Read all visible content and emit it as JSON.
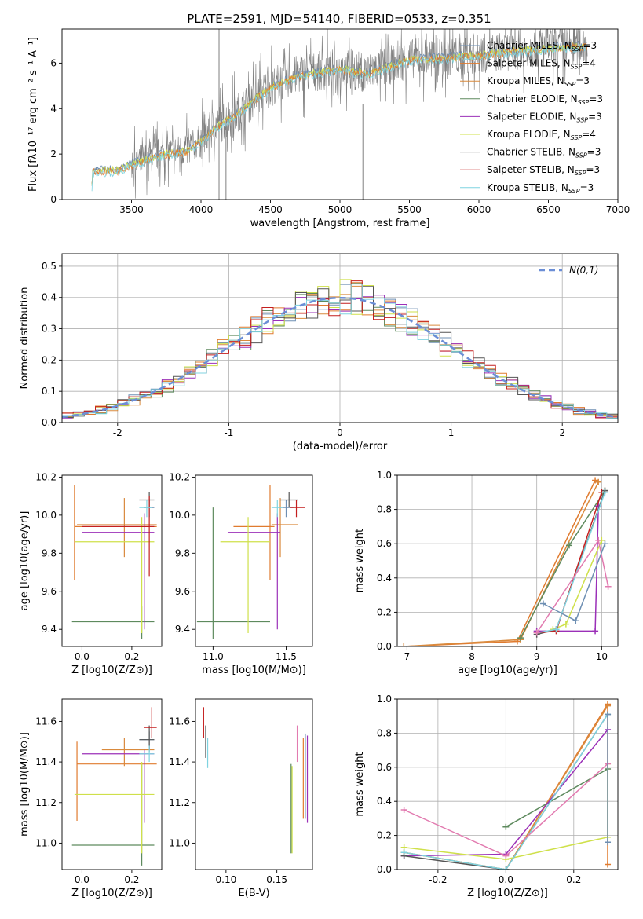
{
  "figure": {
    "title": "PLATE=2591, MJD=54140, FIBERID=0533, z=0.351"
  },
  "colors": {
    "Chabrier MILES": "#6e8fb3",
    "Salpeter MILES": "#e07b2f",
    "Kroupa MILES": "#d98a3d",
    "Chabrier ELODIE": "#5e8a5e",
    "Salpeter ELODIE": "#9b30b8",
    "Kroupa ELODIE": "#cfe04a",
    "Chabrier STELIB": "#555555",
    "Salpeter STELIB": "#c41f1f",
    "Kroupa STELIB": "#7fd3e0",
    "spectrum": "#808080",
    "normal": "#6b8ed6",
    "pink": "#e27bb0",
    "orange": "#e07b2f"
  },
  "chart_data": [
    {
      "id": "spectrum",
      "type": "line",
      "xlabel": "wavelength [Angstrom, rest frame]",
      "ylabel": "Flux [fλ10⁻¹⁷ erg cm⁻² s⁻¹ A⁻¹]",
      "xlim": [
        3000,
        7000
      ],
      "ylim": [
        0,
        7.5
      ],
      "xticks": [
        3500,
        4000,
        4500,
        5000,
        5500,
        6000,
        6500,
        7000
      ],
      "yticks": [
        0,
        2,
        4,
        6
      ],
      "legend_position": "upper right",
      "legend": [
        {
          "name": "Chabrier MILES",
          "sub": "SSP",
          "n": 3
        },
        {
          "name": "Salpeter MILES",
          "sub": "SSP",
          "n": 4
        },
        {
          "name": "Kroupa MILES",
          "sub": "SSP",
          "n": 3
        },
        {
          "name": "Chabrier ELODIE",
          "sub": "SSP",
          "n": 3
        },
        {
          "name": "Salpeter ELODIE",
          "sub": "SSP",
          "n": 3
        },
        {
          "name": "Kroupa ELODIE",
          "sub": "SSP",
          "n": 4
        },
        {
          "name": "Chabrier STELIB",
          "sub": "SSP",
          "n": 3
        },
        {
          "name": "Salpeter STELIB",
          "sub": "SSP",
          "n": 3
        },
        {
          "name": "Kroupa STELIB",
          "sub": "SSP",
          "n": 3
        }
      ],
      "continuum": [
        [
          3210,
          0
        ],
        [
          3220,
          1.3
        ],
        [
          3400,
          1.35
        ],
        [
          3500,
          1.6
        ],
        [
          3700,
          2.0
        ],
        [
          3900,
          2.2
        ],
        [
          4000,
          2.6
        ],
        [
          4100,
          3.2
        ],
        [
          4300,
          4.0
        ],
        [
          4500,
          5.0
        ],
        [
          4700,
          5.5
        ],
        [
          5000,
          5.8
        ],
        [
          5200,
          5.6
        ],
        [
          5500,
          6.2
        ],
        [
          6000,
          6.4
        ],
        [
          6300,
          6.6
        ],
        [
          6500,
          6.7
        ],
        [
          6700,
          6.8
        ],
        [
          6780,
          6.8
        ]
      ]
    },
    {
      "id": "residual-histogram",
      "type": "line",
      "xlabel": "(data-model)/error",
      "ylabel": "Normed distribution",
      "xlim": [
        -2.5,
        2.5
      ],
      "ylim": [
        0,
        0.54
      ],
      "xticks": [
        -2,
        -1,
        0,
        1,
        2
      ],
      "yticks": [
        0.0,
        0.1,
        0.2,
        0.3,
        0.4,
        0.5
      ],
      "legend": "N(0,1)",
      "grid": true
    },
    {
      "id": "age-vs-Z",
      "type": "scatter",
      "xlabel": "Z [log10(Z/Z⊙)]",
      "ylabel": "age  [log10(age/yr)]",
      "xlim": [
        -0.08,
        0.32
      ],
      "ylim": [
        9.31,
        10.21
      ],
      "xticks": [
        0.0,
        0.2
      ],
      "yticks": [
        9.4,
        9.6,
        9.8,
        10.0,
        10.2
      ],
      "points": [
        {
          "s": "Chabrier MILES",
          "x": 0.27,
          "y": 10.04,
          "ex": [
            0.25,
            0.29
          ],
          "ey": [
            9.99,
            10.08
          ]
        },
        {
          "s": "Salpeter MILES",
          "x": -0.03,
          "y": 9.94,
          "ex": [
            -0.03,
            0.3
          ],
          "ey": [
            9.66,
            10.16
          ]
        },
        {
          "s": "Kroupa MILES",
          "x": 0.17,
          "y": 9.95,
          "ex": [
            -0.02,
            0.3
          ],
          "ey": [
            9.78,
            10.09
          ]
        },
        {
          "s": "Chabrier ELODIE",
          "x": 0.24,
          "y": 9.44,
          "ex": [
            -0.04,
            0.29
          ],
          "ey": [
            9.35,
            9.52
          ]
        },
        {
          "s": "Salpeter ELODIE",
          "x": 0.25,
          "y": 9.91,
          "ex": [
            0.0,
            0.29
          ],
          "ey": [
            9.4,
            10.01
          ]
        },
        {
          "s": "Kroupa ELODIE",
          "x": 0.24,
          "y": 9.86,
          "ex": [
            -0.03,
            0.29
          ],
          "ey": [
            9.38,
            9.99
          ]
        },
        {
          "s": "Chabrier STELIB",
          "x": 0.27,
          "y": 10.08,
          "ex": [
            0.23,
            0.29
          ],
          "ey": [
            10.04,
            10.12
          ]
        },
        {
          "s": "Salpeter STELIB",
          "x": 0.27,
          "y": 9.94,
          "ex": [
            0.0,
            0.29
          ],
          "ey": [
            9.68,
            10.1
          ]
        },
        {
          "s": "Kroupa STELIB",
          "x": 0.26,
          "y": 10.04,
          "ex": [
            0.23,
            0.28
          ],
          "ey": [
            9.99,
            10.08
          ]
        }
      ]
    },
    {
      "id": "age-vs-mass",
      "type": "scatter",
      "xlabel": "mass [log10(M/M⊙)]",
      "ylabel": "",
      "xlim": [
        10.88,
        11.68
      ],
      "ylim": [
        9.31,
        10.21
      ],
      "xticks": [
        11.0,
        11.5
      ],
      "yticks": [
        9.4,
        9.6,
        9.8,
        10.0,
        10.2
      ],
      "points": [
        {
          "s": "Chabrier MILES",
          "x": 11.5,
          "y": 10.04,
          "ex": [
            11.45,
            11.55
          ],
          "ey": [
            9.99,
            10.08
          ]
        },
        {
          "s": "Salpeter MILES",
          "x": 11.39,
          "y": 9.94,
          "ex": [
            11.14,
            11.42
          ],
          "ey": [
            9.66,
            10.16
          ]
        },
        {
          "s": "Kroupa MILES",
          "x": 11.46,
          "y": 9.95,
          "ex": [
            11.4,
            11.58
          ],
          "ey": [
            9.78,
            10.09
          ]
        },
        {
          "s": "Chabrier ELODIE",
          "x": 11.0,
          "y": 9.44,
          "ex": [
            10.89,
            11.39
          ],
          "ey": [
            9.35,
            10.04
          ]
        },
        {
          "s": "Salpeter ELODIE",
          "x": 11.44,
          "y": 9.91,
          "ex": [
            11.1,
            11.46
          ],
          "ey": [
            9.4,
            10.01
          ]
        },
        {
          "s": "Kroupa ELODIE",
          "x": 11.24,
          "y": 9.86,
          "ex": [
            11.05,
            11.39
          ],
          "ey": [
            9.38,
            9.99
          ]
        },
        {
          "s": "Chabrier STELIB",
          "x": 11.52,
          "y": 10.08,
          "ex": [
            11.46,
            11.58
          ],
          "ey": [
            10.04,
            10.12
          ]
        },
        {
          "s": "Salpeter STELIB",
          "x": 11.57,
          "y": 10.04,
          "ex": [
            11.53,
            11.63
          ],
          "ey": [
            9.99,
            10.08
          ]
        },
        {
          "s": "Kroupa STELIB",
          "x": 11.44,
          "y": 10.04,
          "ex": [
            11.4,
            11.48
          ],
          "ey": [
            9.99,
            10.08
          ]
        }
      ]
    },
    {
      "id": "mass-weight-vs-age",
      "type": "line",
      "xlabel": "age  [log10(age/yr)]",
      "ylabel": "mass weight",
      "xlim": [
        6.85,
        10.25
      ],
      "ylim": [
        0,
        1.0
      ],
      "xticks": [
        7,
        8,
        9,
        10
      ],
      "yticks": [
        0.0,
        0.2,
        0.4,
        0.6,
        0.8,
        1.0
      ],
      "grid": true,
      "series": [
        {
          "s": "Salpeter MILES",
          "x": [
            6.95,
            8.7,
            9.9
          ],
          "y": [
            0.0,
            0.03,
            0.97
          ]
        },
        {
          "s": "Kroupa MILES",
          "x": [
            6.95,
            8.75,
            9.95
          ],
          "y": [
            0.0,
            0.04,
            0.96
          ]
        },
        {
          "s": "Chabrier ELODIE",
          "x": [
            8.75,
            9.5,
            10.05
          ],
          "y": [
            0.05,
            0.59,
            0.91
          ]
        },
        {
          "s": "Salpeter ELODIE",
          "x": [
            9.0,
            9.9,
            9.95
          ],
          "y": [
            0.09,
            0.09,
            0.82
          ]
        },
        {
          "s": "Kroupa ELODIE",
          "x": [
            9.25,
            9.45,
            10.0
          ],
          "y": [
            0.1,
            0.13,
            0.62
          ]
        },
        {
          "s": "Chabrier STELIB",
          "x": [
            9.0,
            9.3,
            10.05
          ],
          "y": [
            0.07,
            0.1,
            0.91
          ]
        },
        {
          "s": "Salpeter STELIB",
          "x": [
            9.0,
            9.3,
            10.0
          ],
          "y": [
            0.08,
            0.09,
            0.9
          ]
        },
        {
          "s": "Kroupa STELIB",
          "x": [
            9.0,
            9.3,
            10.05
          ],
          "y": [
            0.08,
            0.1,
            0.9
          ]
        },
        {
          "s": "pink",
          "x": [
            9.0,
            9.95,
            10.1
          ],
          "y": [
            0.08,
            0.62,
            0.35
          ]
        },
        {
          "s": "Chabrier MILES",
          "x": [
            9.1,
            9.6,
            10.05
          ],
          "y": [
            0.25,
            0.15,
            0.6
          ]
        }
      ]
    },
    {
      "id": "mass-vs-Z",
      "type": "scatter",
      "xlabel": "Z [log10(Z/Z⊙)]",
      "ylabel": "mass [log10(M/M⊙)]",
      "xlim": [
        -0.08,
        0.32
      ],
      "ylim": [
        10.87,
        11.71
      ],
      "xticks": [
        0.0,
        0.2
      ],
      "yticks": [
        11.0,
        11.2,
        11.4,
        11.6
      ],
      "points": [
        {
          "s": "Chabrier MILES",
          "x": 0.27,
          "y": 11.51,
          "ex": [
            0.23,
            0.29
          ],
          "ey": [
            11.45,
            11.55
          ]
        },
        {
          "s": "Salpeter MILES",
          "x": -0.02,
          "y": 11.39,
          "ex": [
            -0.02,
            0.3
          ],
          "ey": [
            11.11,
            11.5
          ]
        },
        {
          "s": "Kroupa MILES",
          "x": 0.17,
          "y": 11.46,
          "ex": [
            0.08,
            0.29
          ],
          "ey": [
            11.38,
            11.52
          ]
        },
        {
          "s": "Chabrier ELODIE",
          "x": 0.24,
          "y": 10.99,
          "ex": [
            -0.04,
            0.29
          ],
          "ey": [
            10.89,
            11.39
          ]
        },
        {
          "s": "Salpeter ELODIE",
          "x": 0.25,
          "y": 11.44,
          "ex": [
            0.0,
            0.29
          ],
          "ey": [
            11.1,
            11.46
          ]
        },
        {
          "s": "Kroupa ELODIE",
          "x": 0.24,
          "y": 11.24,
          "ex": [
            -0.03,
            0.29
          ],
          "ey": [
            10.95,
            11.4
          ]
        },
        {
          "s": "Chabrier STELIB",
          "x": 0.27,
          "y": 11.51,
          "ex": [
            0.23,
            0.29
          ],
          "ey": [
            11.46,
            11.58
          ]
        },
        {
          "s": "Salpeter STELIB",
          "x": 0.28,
          "y": 11.57,
          "ex": [
            0.25,
            0.3
          ],
          "ey": [
            11.52,
            11.67
          ]
        },
        {
          "s": "Kroupa STELIB",
          "x": 0.27,
          "y": 11.44,
          "ex": [
            0.23,
            0.29
          ],
          "ey": [
            11.4,
            11.48
          ]
        }
      ]
    },
    {
      "id": "mass-vs-EBV",
      "type": "scatter",
      "xlabel": "E(B-V)",
      "ylabel": "",
      "xlim": [
        0.07,
        0.185
      ],
      "ylim": [
        10.87,
        11.71
      ],
      "xticks": [
        0.1,
        0.15
      ],
      "yticks": [
        11.0,
        11.2,
        11.4,
        11.6
      ],
      "points": [
        {
          "s": "Salpeter STELIB",
          "x": 0.078,
          "ey": [
            11.52,
            11.67
          ]
        },
        {
          "s": "Chabrier STELIB",
          "x": 0.08,
          "ey": [
            11.42,
            11.58
          ]
        },
        {
          "s": "Kroupa STELIB",
          "x": 0.082,
          "ey": [
            11.37,
            11.52
          ]
        },
        {
          "s": "Chabrier ELODIE",
          "x": 0.164,
          "ey": [
            10.95,
            11.39
          ]
        },
        {
          "s": "Kroupa ELODIE",
          "x": 0.165,
          "ey": [
            10.95,
            11.38
          ]
        },
        {
          "s": "pink",
          "x": 0.17,
          "ey": [
            11.4,
            11.58
          ]
        },
        {
          "s": "Salpeter MILES",
          "x": 0.176,
          "ey": [
            11.12,
            11.52
          ]
        },
        {
          "s": "Chabrier MILES",
          "x": 0.178,
          "ey": [
            11.12,
            11.54
          ]
        },
        {
          "s": "Salpeter ELODIE",
          "x": 0.18,
          "ey": [
            11.1,
            11.53
          ]
        }
      ]
    },
    {
      "id": "mass-weight-vs-Z",
      "type": "line",
      "xlabel": "Z [log10(Z/Z⊙)]",
      "ylabel": "mass weight",
      "xlim": [
        -0.32,
        0.33
      ],
      "ylim": [
        0,
        1.0
      ],
      "xticks": [
        -0.2,
        0.0,
        0.2
      ],
      "yticks": [
        0.0,
        0.2,
        0.4,
        0.6,
        0.8,
        1.0
      ],
      "grid": true,
      "series": [
        {
          "s": "Salpeter MILES",
          "x": [
            -0.3,
            0.0,
            0.3,
            0.3
          ],
          "y": [
            0.1,
            0.0,
            0.97,
            0.03
          ]
        },
        {
          "s": "Kroupa MILES",
          "x": [
            -0.3,
            0.0,
            0.3
          ],
          "y": [
            0.1,
            0.0,
            0.96
          ]
        },
        {
          "s": "Chabrier ELODIE",
          "x": [
            0.0,
            0.3
          ],
          "y": [
            0.25,
            0.59
          ]
        },
        {
          "s": "Salpeter ELODIE",
          "x": [
            -0.3,
            0.0,
            0.3
          ],
          "y": [
            0.08,
            0.09,
            0.82
          ]
        },
        {
          "s": "Kroupa ELODIE",
          "x": [
            -0.3,
            0.0,
            0.3,
            0.3
          ],
          "y": [
            0.13,
            0.06,
            0.19,
            0.62
          ]
        },
        {
          "s": "Chabrier STELIB",
          "x": [
            -0.3,
            0.0,
            0.3
          ],
          "y": [
            0.08,
            0.0,
            0.91
          ]
        },
        {
          "s": "Kroupa STELIB",
          "x": [
            -0.3,
            0.0,
            0.3
          ],
          "y": [
            0.1,
            0.0,
            0.91
          ]
        },
        {
          "s": "pink",
          "x": [
            -0.3,
            0.0,
            0.3
          ],
          "y": [
            0.35,
            0.08,
            0.62
          ]
        },
        {
          "s": "Chabrier MILES",
          "x": [
            0.3,
            0.3
          ],
          "y": [
            0.16,
            0.91
          ]
        }
      ]
    }
  ]
}
